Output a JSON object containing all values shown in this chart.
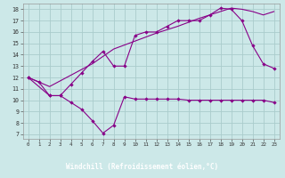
{
  "xlabel": "Windchill (Refroidissement éolien,°C)",
  "bg_color": "#cce8e8",
  "grid_color": "#aacccc",
  "line_color": "#880088",
  "xlabel_bg": "#4444aa",
  "xlabel_fg": "#ffffff",
  "xlim_min": -0.5,
  "xlim_max": 23.5,
  "ylim_min": 6.6,
  "ylim_max": 18.5,
  "xticks": [
    0,
    1,
    2,
    3,
    4,
    5,
    6,
    7,
    8,
    9,
    10,
    11,
    12,
    13,
    14,
    15,
    16,
    17,
    18,
    19,
    20,
    21,
    22,
    23
  ],
  "yticks": [
    7,
    8,
    9,
    10,
    11,
    12,
    13,
    14,
    15,
    16,
    17,
    18
  ],
  "line1_x": [
    0,
    1,
    2,
    3,
    4,
    5,
    6,
    7,
    8,
    9,
    10,
    11,
    12,
    13,
    14,
    15,
    16,
    17,
    18,
    19,
    20,
    21,
    22,
    23
  ],
  "line1_y": [
    12.0,
    11.6,
    10.4,
    10.4,
    9.8,
    9.2,
    8.2,
    7.1,
    7.8,
    10.3,
    10.1,
    10.1,
    10.1,
    10.1,
    10.1,
    10.0,
    10.0,
    10.0,
    10.0,
    10.0,
    10.0,
    10.0,
    10.0,
    9.8
  ],
  "line2_x": [
    0,
    2,
    3,
    4,
    5,
    6,
    7,
    8,
    9,
    10,
    11,
    12,
    13,
    14,
    15,
    16,
    17,
    18,
    19,
    20,
    21,
    22,
    23
  ],
  "line2_y": [
    12.0,
    10.4,
    10.4,
    11.4,
    12.4,
    13.4,
    14.3,
    13.0,
    13.0,
    15.7,
    16.0,
    16.0,
    16.5,
    17.0,
    17.0,
    17.0,
    17.5,
    18.1,
    18.0,
    17.0,
    14.8,
    13.2,
    12.8
  ],
  "line3_x": [
    0,
    2,
    4,
    6,
    8,
    10,
    12,
    14,
    16,
    18,
    19,
    20,
    21,
    22,
    23
  ],
  "line3_y": [
    12.0,
    11.2,
    12.2,
    13.2,
    14.5,
    15.2,
    15.9,
    16.5,
    17.2,
    17.8,
    18.1,
    18.0,
    17.8,
    17.5,
    17.8
  ]
}
